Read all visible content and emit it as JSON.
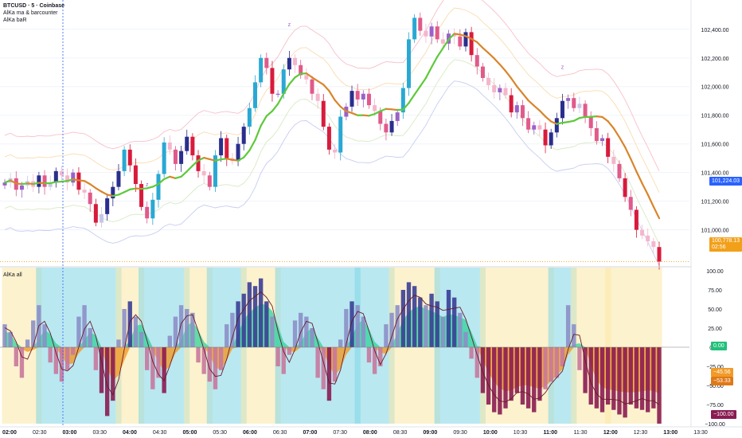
{
  "header": {
    "symbol_line": "BTCUSD · 5 · Coinbase",
    "indicator_1": "AlKa ma & barcounter",
    "indicator_2": "AlKa baR",
    "pane_label": "AlKa all"
  },
  "colors": {
    "bull_bar": "#2a2e8c",
    "bull_bar_light": "#c8c6e8",
    "bear_bar": "#d81b3c",
    "bear_bar_pink": "#e05a8a",
    "cyan_bar": "#2aa8d4",
    "purple_bar": "#9a62c8",
    "ma_green": "#5dc93a",
    "ma_orange": "#d9852a",
    "price_tag": "#f2a01a",
    "ma_tag": "#2962ff",
    "osc_up": "#3a3e96",
    "osc_down": "#8a1c52",
    "fill_up": "#2fd39a",
    "fill_down": "#f09a28",
    "bg_cyan": "#7fd6e6",
    "bg_yellow": "#fbe7a6"
  },
  "chart_data": [
    {
      "type": "candlestick",
      "title": "BTCUSD · 5 · Coinbase",
      "x_ticks": [
        "02:00",
        "02:30",
        "03:00",
        "03:30",
        "04:00",
        "04:30",
        "05:00",
        "05:30",
        "06:00",
        "06:30",
        "07:00",
        "07:30",
        "08:00",
        "08:30",
        "09:00",
        "09:30",
        "10:00",
        "10:30",
        "11:00",
        "11:30",
        "12:00",
        "12:30",
        "13:00",
        "13:30"
      ],
      "y_ticks": [
        101000,
        101200,
        101400,
        101600,
        101800,
        102000,
        102200,
        102400
      ],
      "y_tick_labels": [
        "101,000.00",
        "101,200.00",
        "101,400.00",
        "101,600.00",
        "101,800.00",
        "102,000.00",
        "102,200.00",
        "102,400.00"
      ],
      "ylim": [
        100770,
        102560
      ],
      "last_price": "100,778.13",
      "countdown": "02:56",
      "ma_value": "101,224.03",
      "markers": [
        "z",
        "z",
        "z",
        "z"
      ],
      "candles_close": [
        101330,
        101360,
        101280,
        101310,
        101340,
        101300,
        101380,
        101300,
        101330,
        101410,
        101380,
        101330,
        101400,
        101280,
        101260,
        101180,
        101050,
        101110,
        101220,
        101300,
        101410,
        101560,
        101450,
        101320,
        101160,
        101080,
        101210,
        101390,
        101610,
        101560,
        101460,
        101550,
        101650,
        101520,
        101410,
        101380,
        101300,
        101520,
        101640,
        101500,
        101480,
        101600,
        101720,
        101850,
        102030,
        102200,
        102130,
        101950,
        101950,
        102120,
        102200,
        102150,
        102080,
        102050,
        101950,
        101900,
        101720,
        101560,
        101540,
        101790,
        101860,
        101970,
        101910,
        101950,
        101870,
        101830,
        101740,
        101680,
        101760,
        101820,
        101990,
        102330,
        102480,
        102390,
        102350,
        102420,
        102330,
        102300,
        102370,
        102350,
        102280,
        102380,
        102220,
        102140,
        102060,
        102010,
        101960,
        101990,
        101940,
        101820,
        101870,
        101780,
        101700,
        101730,
        101700,
        101590,
        101680,
        101780,
        101900,
        101920,
        101850,
        101880,
        101790,
        101710,
        101620,
        101640,
        101510,
        101460,
        101360,
        101230,
        101140,
        101000,
        100960,
        100920,
        100880,
        100778
      ]
    },
    {
      "type": "bar",
      "title": "AlKa all",
      "y_ticks": [
        100,
        75,
        50,
        25,
        0,
        -25,
        -50,
        -75,
        -100
      ],
      "y_tick_labels": [
        "100.00",
        "75.00",
        "50.00",
        "25.00",
        "0.00",
        "−25.00",
        "−50.00",
        "−75.00",
        "−100.00"
      ],
      "ylim": [
        -100,
        100
      ],
      "tags": [
        "0.00",
        "−45.56",
        "−53.33",
        "−100.00"
      ],
      "values": [
        30,
        20,
        -25,
        -40,
        10,
        35,
        55,
        30,
        -20,
        -35,
        -45,
        -30,
        -10,
        40,
        55,
        25,
        -30,
        -60,
        -90,
        -70,
        10,
        50,
        60,
        40,
        20,
        -30,
        -55,
        -40,
        -60,
        15,
        40,
        55,
        50,
        45,
        -20,
        -35,
        -45,
        -55,
        -30,
        30,
        45,
        60,
        70,
        85,
        80,
        90,
        60,
        40,
        -25,
        -35,
        -10,
        35,
        45,
        40,
        25,
        -40,
        -55,
        -70,
        -45,
        10,
        50,
        60,
        55,
        40,
        -20,
        -35,
        -25,
        30,
        45,
        55,
        75,
        85,
        80,
        65,
        55,
        70,
        60,
        40,
        75,
        65,
        45,
        20,
        -15,
        -40,
        -60,
        -75,
        -85,
        -88,
        -80,
        -70,
        -60,
        -75,
        -80,
        -85,
        -70,
        -55,
        -45,
        -40,
        -25,
        55,
        30,
        -30,
        -60,
        -75,
        -80,
        -85,
        -75,
        -82,
        -88,
        -92,
        -75,
        -80,
        -82,
        -85,
        -80,
        -100
      ],
      "background_bands": [
        {
          "from": 0,
          "to": 6,
          "color": "bg_yellow"
        },
        {
          "from": 6,
          "to": 20,
          "color": "bg_cyan"
        },
        {
          "from": 20,
          "to": 24,
          "color": "bg_yellow"
        },
        {
          "from": 24,
          "to": 32,
          "color": "bg_cyan"
        },
        {
          "from": 32,
          "to": 36,
          "color": "bg_yellow"
        },
        {
          "from": 36,
          "to": 42,
          "color": "bg_cyan"
        },
        {
          "from": 42,
          "to": 48,
          "color": "bg_yellow"
        },
        {
          "from": 48,
          "to": 62,
          "color": "bg_cyan"
        },
        {
          "from": 62,
          "to": 68,
          "color": "bg_cyan"
        },
        {
          "from": 68,
          "to": 76,
          "color": "bg_yellow"
        },
        {
          "from": 76,
          "to": 84,
          "color": "bg_cyan"
        },
        {
          "from": 84,
          "to": 96,
          "color": "bg_yellow"
        },
        {
          "from": 96,
          "to": 100,
          "color": "bg_cyan"
        },
        {
          "from": 100,
          "to": 106,
          "color": "bg_yellow"
        },
        {
          "from": 106,
          "to": 116,
          "color": "bg_yellow"
        }
      ]
    }
  ]
}
